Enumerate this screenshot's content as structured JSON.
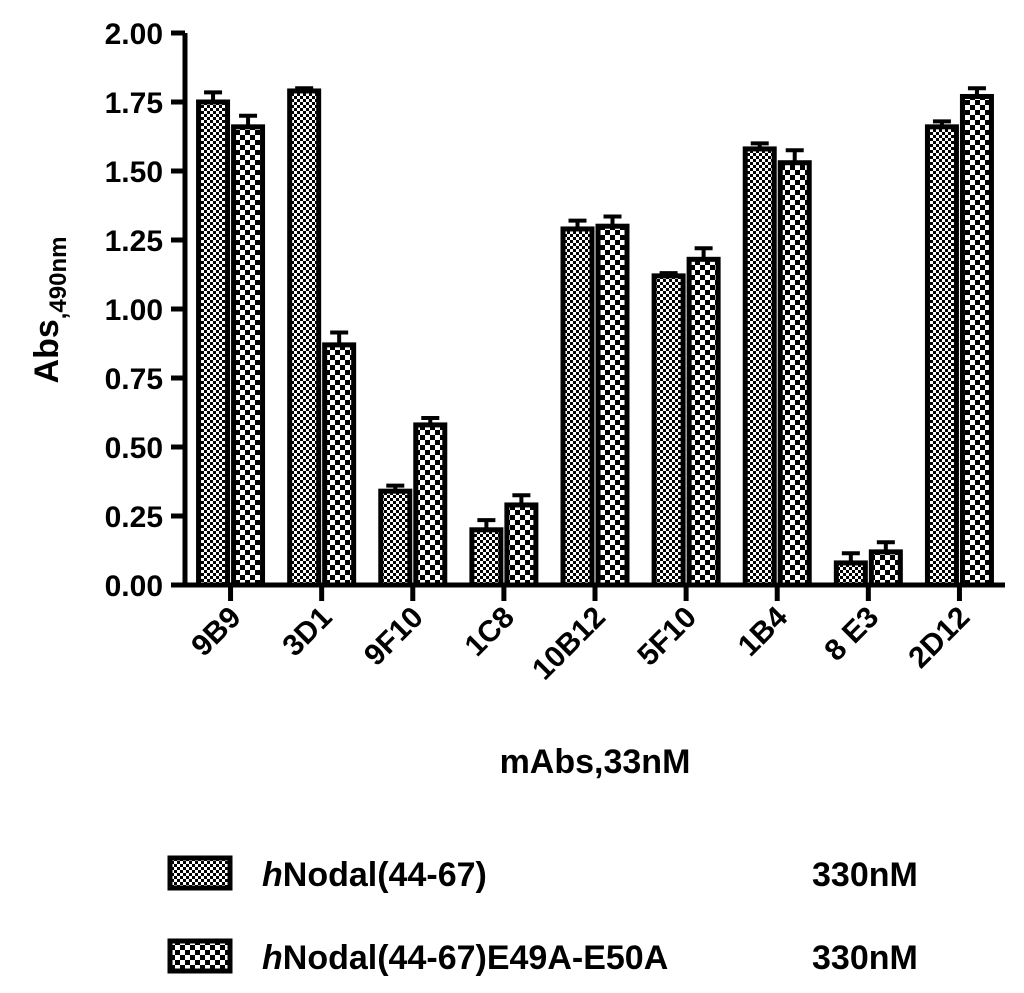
{
  "chart_data": {
    "type": "bar",
    "title": "",
    "xlabel": "mAbs,33nM",
    "ylabel": {
      "main": "Abs",
      "subscript": ",490nm"
    },
    "ylim": [
      0,
      2.0
    ],
    "yticks": [
      "0.00",
      "0.25",
      "0.50",
      "0.75",
      "1.00",
      "1.25",
      "1.50",
      "1.75",
      "2.00"
    ],
    "categories": [
      "9B9",
      "3D1",
      "9F10",
      "1C8",
      "10B12",
      "5F10",
      "1B4",
      "8 E3",
      "2D12"
    ],
    "series": [
      {
        "name": "hNodal(44-67)",
        "name_italic": "h",
        "name_rest": "Nodal(44-67)",
        "name_suffix": "330nM",
        "pattern": "fine-checker",
        "values": [
          1.75,
          1.79,
          0.34,
          0.2,
          1.29,
          1.12,
          1.58,
          0.08,
          1.66
        ],
        "errors": [
          0.035,
          0.01,
          0.02,
          0.035,
          0.03,
          0.01,
          0.02,
          0.035,
          0.02
        ]
      },
      {
        "name": "hNodal(44-67)E49A-E50A",
        "name_italic": "h",
        "name_rest": "Nodal(44-67)E49A-E50A",
        "name_suffix": "330nM",
        "pattern": "coarse-checker",
        "values": [
          1.66,
          0.87,
          0.58,
          0.29,
          1.3,
          1.18,
          1.53,
          0.12,
          1.77
        ],
        "errors": [
          0.04,
          0.045,
          0.025,
          0.035,
          0.035,
          0.04,
          0.045,
          0.035,
          0.03
        ]
      }
    ],
    "grid": false,
    "legend": "bottom"
  }
}
